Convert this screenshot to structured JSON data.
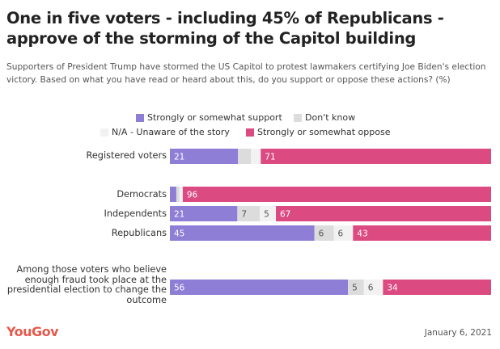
{
  "title": "One in five voters - including 45% of Republicans - approve of the storming of the Capitol building",
  "subtitle": "Supporters of President Trump have stormed the US Capitol to protest lawmakers certifying Joe Biden's election victory. Based on what you have read or heard about this, do you support or oppose these actions? (%)",
  "brand": "YouGov",
  "date": "January 6, 2021",
  "colors": {
    "support": "#8e7ed6",
    "dont_know": "#dcdcdc",
    "na": "#f2f2f2",
    "oppose": "#dc4a82"
  },
  "chart_data": {
    "type": "bar",
    "orientation": "horizontal",
    "stacked": true,
    "legend_placement": "top",
    "categories": [
      "Registered voters",
      "Democrats",
      "Independents",
      "Republicans",
      "Among those voters who believe enough fraud took place at the presidential election to change the outcome"
    ],
    "series": [
      {
        "name": "Strongly or somewhat support",
        "values": [
          21,
          2,
          21,
          45,
          56
        ],
        "labels": [
          "21",
          "",
          "21",
          "45",
          "56"
        ]
      },
      {
        "name": "Don't know",
        "values": [
          4,
          1,
          7,
          6,
          5
        ],
        "labels": [
          "",
          "",
          "7",
          "6",
          "5"
        ]
      },
      {
        "name": "N/A - Unaware of the story",
        "values": [
          3,
          1,
          5,
          6,
          6
        ],
        "labels": [
          "",
          "",
          "5",
          "6",
          "6"
        ]
      },
      {
        "name": "Strongly or somewhat oppose",
        "values": [
          71,
          96,
          67,
          43,
          34
        ],
        "labels": [
          "71",
          "96",
          "67",
          "43",
          "34"
        ]
      }
    ],
    "xlim": [
      0,
      100
    ]
  }
}
